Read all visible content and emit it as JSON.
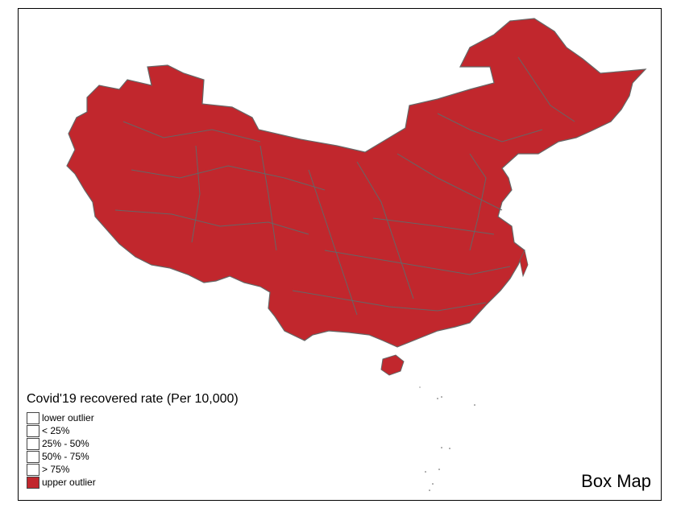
{
  "map": {
    "title": "Box Map",
    "fill_color": "#c1272d",
    "border_color": "#666666"
  },
  "legend": {
    "title": "Covid'19 recovered rate (Per 10,000)",
    "items": [
      {
        "label": "lower outlier",
        "color": "#ffffff"
      },
      {
        "label": "< 25%",
        "color": "#ffffff"
      },
      {
        "label": "25% - 50%",
        "color": "#ffffff"
      },
      {
        "label": "50% - 75%",
        "color": "#ffffff"
      },
      {
        "label": "> 75%",
        "color": "#ffffff"
      },
      {
        "label": "upper outlier",
        "color": "#c1272d"
      }
    ]
  }
}
